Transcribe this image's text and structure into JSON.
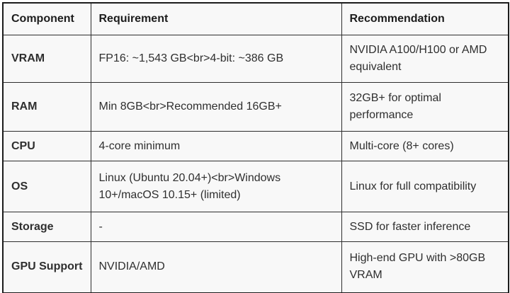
{
  "table": {
    "columns": {
      "component": "Component",
      "requirement": "Requirement",
      "recommendation": "Recommendation"
    },
    "rows": [
      {
        "component": "VRAM",
        "requirement": "FP16: ~1,543 GB<br>4-bit: ~386 GB",
        "recommendation": "NVIDIA A100/H100 or AMD equivalent"
      },
      {
        "component": "RAM",
        "requirement": "Min 8GB<br>Recommended 16GB+",
        "recommendation": "32GB+ for optimal performance"
      },
      {
        "component": "CPU",
        "requirement": "4-core minimum",
        "recommendation": "Multi-core (8+ cores)"
      },
      {
        "component": "OS",
        "requirement": "Linux (Ubuntu 20.04+)<br>Windows 10+/macOS 10.15+ (limited)",
        "recommendation": "Linux for full compatibility"
      },
      {
        "component": "Storage",
        "requirement": "-",
        "recommendation": "SSD for faster inference"
      },
      {
        "component": "GPU Support",
        "requirement": "NVIDIA/AMD",
        "recommendation": "High-end GPU with >80GB VRAM"
      }
    ]
  },
  "colors": {
    "cell_background": "#f8f8f8",
    "outer_border": "#1c1c1c",
    "inner_border": "#2e2e2e",
    "header_text": "#1c1c1c",
    "body_text": "#2f2f2f",
    "page_background": "#ffffff"
  }
}
